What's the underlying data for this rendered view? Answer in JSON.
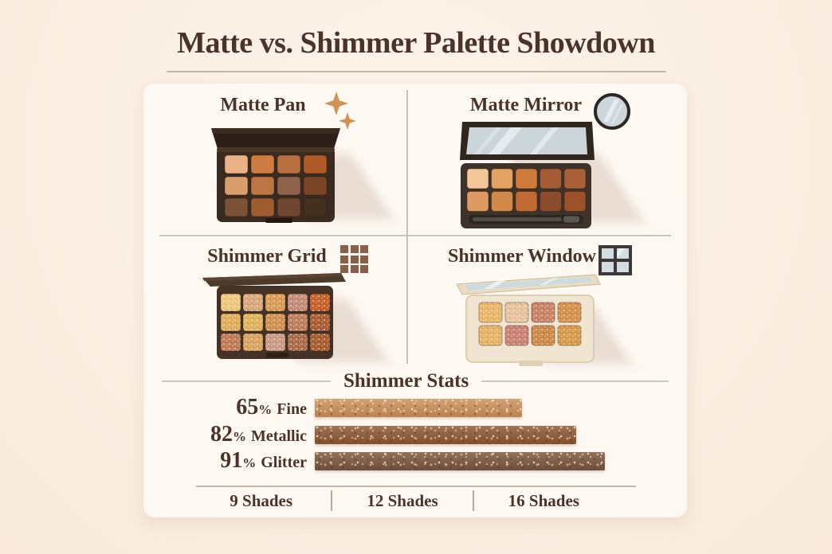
{
  "title": "Matte vs. Shimmer Palette Showdown",
  "quadrants": [
    {
      "label": "Matte Pan",
      "icon": "sparkle-icon"
    },
    {
      "label": "Matte Mirror",
      "icon": "mirror-icon"
    },
    {
      "label": "Shimmer Grid",
      "icon": "grid-icon"
    },
    {
      "label": "Shimmer Window",
      "icon": "window-icon"
    }
  ],
  "palettes": {
    "matte_pan": {
      "rows": 3,
      "cols": 4,
      "swatches": [
        [
          "#ecb287",
          "#cd7c42",
          "#b8703f",
          "#b05a28"
        ],
        [
          "#d99e6d",
          "#bd7544",
          "#90644c",
          "#7b4527"
        ],
        [
          "#7c5236",
          "#9d5d31",
          "#6f4630",
          "#44301f"
        ]
      ]
    },
    "matte_mirror": {
      "rows": 2,
      "cols": 5,
      "swatches": [
        [
          "#f3c79a",
          "#e3a264",
          "#cf7b3c",
          "#a35c36",
          "#aa6036"
        ],
        [
          "#dd9b62",
          "#d08948",
          "#c16a33",
          "#8c4c2b",
          "#9c512a"
        ]
      ]
    },
    "shimmer_grid": {
      "rows": 3,
      "cols": 5,
      "swatches": [
        [
          "#eec87e",
          "#d9a87c",
          "#db9c57",
          "#c48d7a",
          "#c5622c"
        ],
        [
          "#dfae5e",
          "#e0b35e",
          "#cf9050",
          "#bd7e5e",
          "#a95d34"
        ],
        [
          "#bd7b56",
          "#d9a45f",
          "#cb9b88",
          "#a96b4b",
          "#a55d31"
        ]
      ]
    },
    "shimmer_window": {
      "rows": 2,
      "cols": 4,
      "swatches": [
        [
          "#eab66c",
          "#e5c49f",
          "#c8826a",
          "#d3914d"
        ],
        [
          "#e6b369",
          "#c98275",
          "#cb8a49",
          "#d89a4e"
        ]
      ]
    }
  },
  "stats": {
    "title": "Shimmer Stats",
    "bars": [
      {
        "value": 65,
        "unit": "%",
        "label": "Fine",
        "color": "#c98d56"
      },
      {
        "value": 82,
        "unit": "%",
        "label": "Metallic",
        "color": "#8a5531"
      },
      {
        "value": 91,
        "unit": "%",
        "label": "Glitter",
        "color": "#77543b"
      }
    ]
  },
  "footer": {
    "items": [
      "9 Shades",
      "12 Shades",
      "16 Shades"
    ]
  },
  "colors": {
    "background": "#faeee2",
    "card": "#fdf8f2",
    "text": "#4a332b",
    "divider": "#cbc3bb",
    "sparkle": "#cf9353"
  },
  "chart_data": {
    "type": "bar",
    "orientation": "horizontal",
    "title": "Shimmer Stats",
    "categories": [
      "Fine",
      "Metallic",
      "Glitter"
    ],
    "values": [
      65,
      82,
      91
    ],
    "unit": "%",
    "bar_colors": [
      "#c98d56",
      "#8a5531",
      "#77543b"
    ],
    "xlim": [
      0,
      100
    ],
    "grid": false,
    "legend": false,
    "annotations": [
      "9 Shades",
      "12 Shades",
      "16 Shades"
    ]
  }
}
